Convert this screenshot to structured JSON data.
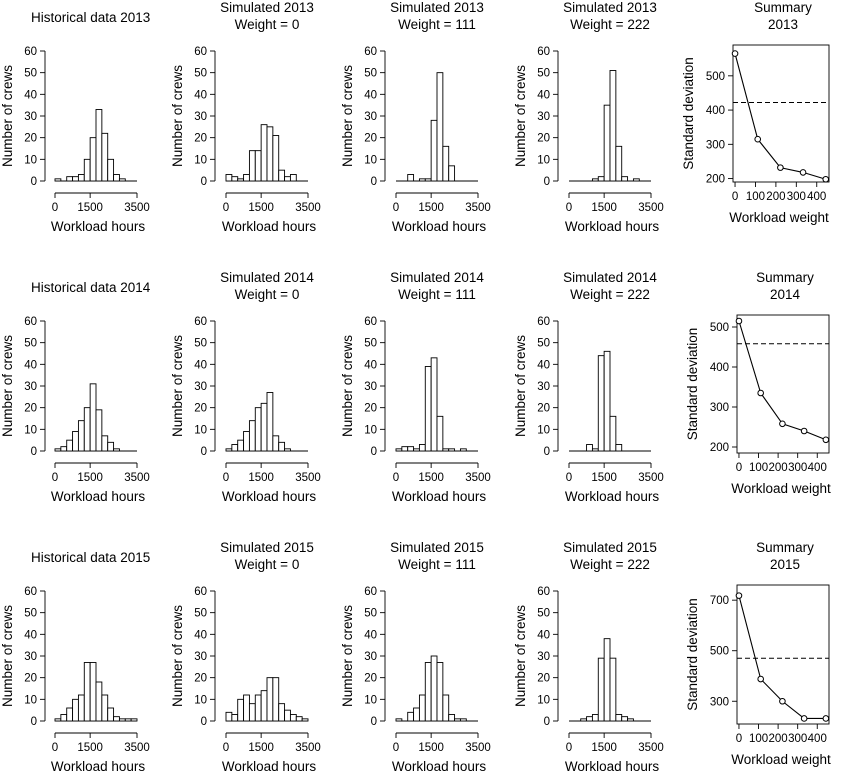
{
  "chart_data": [
    {
      "id": "hist2013",
      "type": "bar",
      "title": [
        "Historical data 2013"
      ],
      "xlabel": "Workload hours",
      "ylabel": "Number of crews",
      "xlim": [
        0,
        3500
      ],
      "xticks": [
        0,
        1500,
        3500
      ],
      "ylim": [
        0,
        60
      ],
      "yticks": [
        0,
        10,
        20,
        30,
        40,
        50,
        60
      ],
      "bin_width": 250,
      "bins": [
        {
          "x0": 0,
          "v": 1
        },
        {
          "x0": 250,
          "v": 0
        },
        {
          "x0": 500,
          "v": 2
        },
        {
          "x0": 750,
          "v": 2
        },
        {
          "x0": 1000,
          "v": 3
        },
        {
          "x0": 1250,
          "v": 10
        },
        {
          "x0": 1500,
          "v": 20
        },
        {
          "x0": 1750,
          "v": 33
        },
        {
          "x0": 2000,
          "v": 22
        },
        {
          "x0": 2250,
          "v": 10
        },
        {
          "x0": 2500,
          "v": 3
        },
        {
          "x0": 2750,
          "v": 1
        }
      ]
    },
    {
      "id": "sim2013w0",
      "type": "bar",
      "title": [
        "Simulated 2013",
        "Weight = 0"
      ],
      "xlabel": "Workload hours",
      "ylabel": "Number of crews",
      "xlim": [
        0,
        3500
      ],
      "xticks": [
        0,
        1500,
        3500
      ],
      "ylim": [
        0,
        60
      ],
      "yticks": [
        0,
        10,
        20,
        30,
        40,
        50,
        60
      ],
      "bin_width": 250,
      "bins": [
        {
          "x0": 0,
          "v": 3
        },
        {
          "x0": 250,
          "v": 2
        },
        {
          "x0": 500,
          "v": 1
        },
        {
          "x0": 750,
          "v": 3
        },
        {
          "x0": 1000,
          "v": 14
        },
        {
          "x0": 1250,
          "v": 14
        },
        {
          "x0": 1500,
          "v": 26
        },
        {
          "x0": 1750,
          "v": 25
        },
        {
          "x0": 2000,
          "v": 21
        },
        {
          "x0": 2250,
          "v": 5
        },
        {
          "x0": 2500,
          "v": 2
        },
        {
          "x0": 2750,
          "v": 3
        }
      ]
    },
    {
      "id": "sim2013w111",
      "type": "bar",
      "title": [
        "Simulated 2013",
        "Weight = 111"
      ],
      "xlabel": "Workload hours",
      "ylabel": "Number of crews",
      "xlim": [
        0,
        3500
      ],
      "xticks": [
        0,
        1500,
        3500
      ],
      "ylim": [
        0,
        60
      ],
      "yticks": [
        0,
        10,
        20,
        30,
        40,
        50,
        60
      ],
      "bin_width": 250,
      "bins": [
        {
          "x0": 500,
          "v": 3
        },
        {
          "x0": 750,
          "v": 0
        },
        {
          "x0": 1000,
          "v": 1
        },
        {
          "x0": 1250,
          "v": 1
        },
        {
          "x0": 1500,
          "v": 28
        },
        {
          "x0": 1750,
          "v": 50
        },
        {
          "x0": 2000,
          "v": 16
        },
        {
          "x0": 2250,
          "v": 7
        }
      ]
    },
    {
      "id": "sim2013w222",
      "type": "bar",
      "title": [
        "Simulated 2013",
        "Weight = 222"
      ],
      "xlabel": "Workload hours",
      "ylabel": "Number of crews",
      "xlim": [
        0,
        3500
      ],
      "xticks": [
        0,
        1500,
        3500
      ],
      "ylim": [
        0,
        60
      ],
      "yticks": [
        0,
        10,
        20,
        30,
        40,
        50,
        60
      ],
      "bin_width": 250,
      "bins": [
        {
          "x0": 1000,
          "v": 1
        },
        {
          "x0": 1250,
          "v": 2
        },
        {
          "x0": 1500,
          "v": 35
        },
        {
          "x0": 1750,
          "v": 51
        },
        {
          "x0": 2000,
          "v": 16
        },
        {
          "x0": 2250,
          "v": 2
        },
        {
          "x0": 2500,
          "v": 0
        },
        {
          "x0": 2750,
          "v": 1
        }
      ]
    },
    {
      "id": "summary2013",
      "type": "line",
      "title": [
        "Summary",
        "2013"
      ],
      "xlabel": "Workload weight",
      "ylabel": "Standard deviation",
      "xlim": [
        -10,
        460
      ],
      "xticks": [
        0,
        100,
        200,
        300,
        400
      ],
      "ylim": [
        190,
        590
      ],
      "yticks": [
        200,
        300,
        400,
        500
      ],
      "x": [
        0,
        111,
        222,
        333,
        444
      ],
      "y": [
        565,
        315,
        232,
        218,
        198
      ],
      "reference_line": 422
    },
    {
      "id": "hist2014",
      "type": "bar",
      "title": [
        "Historical data 2014"
      ],
      "xlabel": "Workload hours",
      "ylabel": "Number of crews",
      "xlim": [
        0,
        3500
      ],
      "xticks": [
        0,
        1500,
        3500
      ],
      "ylim": [
        0,
        60
      ],
      "yticks": [
        0,
        10,
        20,
        30,
        40,
        50,
        60
      ],
      "bin_width": 250,
      "bins": [
        {
          "x0": 0,
          "v": 1
        },
        {
          "x0": 250,
          "v": 2
        },
        {
          "x0": 500,
          "v": 5
        },
        {
          "x0": 750,
          "v": 9
        },
        {
          "x0": 1000,
          "v": 14
        },
        {
          "x0": 1250,
          "v": 20
        },
        {
          "x0": 1500,
          "v": 31
        },
        {
          "x0": 1750,
          "v": 19
        },
        {
          "x0": 2000,
          "v": 7
        },
        {
          "x0": 2250,
          "v": 4
        },
        {
          "x0": 2500,
          "v": 1
        }
      ]
    },
    {
      "id": "sim2014w0",
      "type": "bar",
      "title": [
        "Simulated 2014",
        "Weight = 0"
      ],
      "xlabel": "Workload hours",
      "ylabel": "Number of crews",
      "xlim": [
        0,
        3500
      ],
      "xticks": [
        0,
        1500,
        3500
      ],
      "ylim": [
        0,
        60
      ],
      "yticks": [
        0,
        10,
        20,
        30,
        40,
        50,
        60
      ],
      "bin_width": 250,
      "bins": [
        {
          "x0": 0,
          "v": 1
        },
        {
          "x0": 250,
          "v": 3
        },
        {
          "x0": 500,
          "v": 5
        },
        {
          "x0": 750,
          "v": 9
        },
        {
          "x0": 1000,
          "v": 14
        },
        {
          "x0": 1250,
          "v": 20
        },
        {
          "x0": 1500,
          "v": 22
        },
        {
          "x0": 1750,
          "v": 27
        },
        {
          "x0": 2000,
          "v": 7
        },
        {
          "x0": 2250,
          "v": 4
        },
        {
          "x0": 2500,
          "v": 1
        }
      ]
    },
    {
      "id": "sim2014w111",
      "type": "bar",
      "title": [
        "Simulated 2014",
        "Weight = 111"
      ],
      "xlabel": "Workload hours",
      "ylabel": "Number of crews",
      "xlim": [
        0,
        3500
      ],
      "xticks": [
        0,
        1500,
        3500
      ],
      "ylim": [
        0,
        60
      ],
      "yticks": [
        0,
        10,
        20,
        30,
        40,
        50,
        60
      ],
      "bin_width": 250,
      "bins": [
        {
          "x0": 0,
          "v": 1
        },
        {
          "x0": 250,
          "v": 2
        },
        {
          "x0": 500,
          "v": 2
        },
        {
          "x0": 750,
          "v": 1
        },
        {
          "x0": 1000,
          "v": 3
        },
        {
          "x0": 1250,
          "v": 39
        },
        {
          "x0": 1500,
          "v": 43
        },
        {
          "x0": 1750,
          "v": 16
        },
        {
          "x0": 2000,
          "v": 1
        },
        {
          "x0": 2250,
          "v": 1
        },
        {
          "x0": 2500,
          "v": 0
        },
        {
          "x0": 2750,
          "v": 1
        }
      ]
    },
    {
      "id": "sim2014w222",
      "type": "bar",
      "title": [
        "Simulated 2014",
        "Weight = 222"
      ],
      "xlabel": "Workload hours",
      "ylabel": "Number of crews",
      "xlim": [
        0,
        3500
      ],
      "xticks": [
        0,
        1500,
        3500
      ],
      "ylim": [
        0,
        60
      ],
      "yticks": [
        0,
        10,
        20,
        30,
        40,
        50,
        60
      ],
      "bin_width": 250,
      "bins": [
        {
          "x0": 750,
          "v": 3
        },
        {
          "x0": 1000,
          "v": 1
        },
        {
          "x0": 1250,
          "v": 44
        },
        {
          "x0": 1500,
          "v": 46
        },
        {
          "x0": 1750,
          "v": 16
        },
        {
          "x0": 2000,
          "v": 3
        }
      ]
    },
    {
      "id": "summary2014",
      "type": "line",
      "title": [
        "Summary",
        "2014"
      ],
      "xlabel": "Workload weight",
      "ylabel": "Standard deviation",
      "xlim": [
        -10,
        460
      ],
      "xticks": [
        0,
        100,
        200,
        300,
        400
      ],
      "ylim": [
        185,
        530
      ],
      "yticks": [
        200,
        300,
        400,
        500
      ],
      "x": [
        0,
        111,
        222,
        333,
        444
      ],
      "y": [
        515,
        335,
        258,
        240,
        218
      ],
      "reference_line": 458
    },
    {
      "id": "hist2015",
      "type": "bar",
      "title": [
        "Historical data 2015"
      ],
      "xlabel": "Workload hours",
      "ylabel": "Number of crews",
      "xlim": [
        0,
        3500
      ],
      "xticks": [
        0,
        1500,
        3500
      ],
      "ylim": [
        0,
        60
      ],
      "yticks": [
        0,
        10,
        20,
        30,
        40,
        50,
        60
      ],
      "bin_width": 250,
      "bins": [
        {
          "x0": 0,
          "v": 1
        },
        {
          "x0": 250,
          "v": 3
        },
        {
          "x0": 500,
          "v": 6
        },
        {
          "x0": 750,
          "v": 10
        },
        {
          "x0": 1000,
          "v": 12
        },
        {
          "x0": 1250,
          "v": 27
        },
        {
          "x0": 1500,
          "v": 27
        },
        {
          "x0": 1750,
          "v": 18
        },
        {
          "x0": 2000,
          "v": 12
        },
        {
          "x0": 2250,
          "v": 6
        },
        {
          "x0": 2500,
          "v": 2
        },
        {
          "x0": 2750,
          "v": 1
        },
        {
          "x0": 3000,
          "v": 1
        },
        {
          "x0": 3250,
          "v": 1
        }
      ]
    },
    {
      "id": "sim2015w0",
      "type": "bar",
      "title": [
        "Simulated 2015",
        "Weight = 0"
      ],
      "xlabel": "Workload hours",
      "ylabel": "Number of crews",
      "xlim": [
        0,
        3500
      ],
      "xticks": [
        0,
        1500,
        3500
      ],
      "ylim": [
        0,
        60
      ],
      "yticks": [
        0,
        10,
        20,
        30,
        40,
        50,
        60
      ],
      "bin_width": 250,
      "bins": [
        {
          "x0": 0,
          "v": 4
        },
        {
          "x0": 250,
          "v": 3
        },
        {
          "x0": 500,
          "v": 10
        },
        {
          "x0": 750,
          "v": 12
        },
        {
          "x0": 1000,
          "v": 8
        },
        {
          "x0": 1250,
          "v": 12
        },
        {
          "x0": 1500,
          "v": 14
        },
        {
          "x0": 1750,
          "v": 20
        },
        {
          "x0": 2000,
          "v": 20
        },
        {
          "x0": 2250,
          "v": 8
        },
        {
          "x0": 2500,
          "v": 5
        },
        {
          "x0": 2750,
          "v": 3
        },
        {
          "x0": 3000,
          "v": 2
        },
        {
          "x0": 3250,
          "v": 1
        }
      ]
    },
    {
      "id": "sim2015w111",
      "type": "bar",
      "title": [
        "Simulated 2015",
        "Weight = 111"
      ],
      "xlabel": "Workload hours",
      "ylabel": "Number of crews",
      "xlim": [
        0,
        3500
      ],
      "xticks": [
        0,
        1500,
        3500
      ],
      "ylim": [
        0,
        60
      ],
      "yticks": [
        0,
        10,
        20,
        30,
        40,
        50,
        60
      ],
      "bin_width": 250,
      "bins": [
        {
          "x0": 0,
          "v": 1
        },
        {
          "x0": 250,
          "v": 0
        },
        {
          "x0": 500,
          "v": 4
        },
        {
          "x0": 750,
          "v": 6
        },
        {
          "x0": 1000,
          "v": 12
        },
        {
          "x0": 1250,
          "v": 27
        },
        {
          "x0": 1500,
          "v": 30
        },
        {
          "x0": 1750,
          "v": 27
        },
        {
          "x0": 2000,
          "v": 12
        },
        {
          "x0": 2250,
          "v": 3
        },
        {
          "x0": 2500,
          "v": 1
        },
        {
          "x0": 2750,
          "v": 1
        }
      ]
    },
    {
      "id": "sim2015w222",
      "type": "bar",
      "title": [
        "Simulated 2015",
        "Weight = 222"
      ],
      "xlabel": "Workload hours",
      "ylabel": "Number of crews",
      "xlim": [
        0,
        3500
      ],
      "xticks": [
        0,
        1500,
        3500
      ],
      "ylim": [
        0,
        60
      ],
      "yticks": [
        0,
        10,
        20,
        30,
        40,
        50,
        60
      ],
      "bin_width": 250,
      "bins": [
        {
          "x0": 500,
          "v": 1
        },
        {
          "x0": 750,
          "v": 2
        },
        {
          "x0": 1000,
          "v": 3
        },
        {
          "x0": 1250,
          "v": 29
        },
        {
          "x0": 1500,
          "v": 38
        },
        {
          "x0": 1750,
          "v": 29
        },
        {
          "x0": 2000,
          "v": 3
        },
        {
          "x0": 2250,
          "v": 2
        },
        {
          "x0": 2500,
          "v": 1
        }
      ]
    },
    {
      "id": "summary2015",
      "type": "line",
      "title": [
        "Summary",
        "2015"
      ],
      "xlabel": "Workload weight",
      "ylabel": "Standard deviation",
      "xlim": [
        -10,
        460
      ],
      "xticks": [
        0,
        100,
        200,
        300,
        400
      ],
      "ylim": [
        210,
        760
      ],
      "yticks": [
        300,
        500,
        700
      ],
      "x": [
        0,
        111,
        222,
        333,
        444
      ],
      "y": [
        718,
        388,
        300,
        232,
        232
      ],
      "reference_line": 470
    }
  ]
}
